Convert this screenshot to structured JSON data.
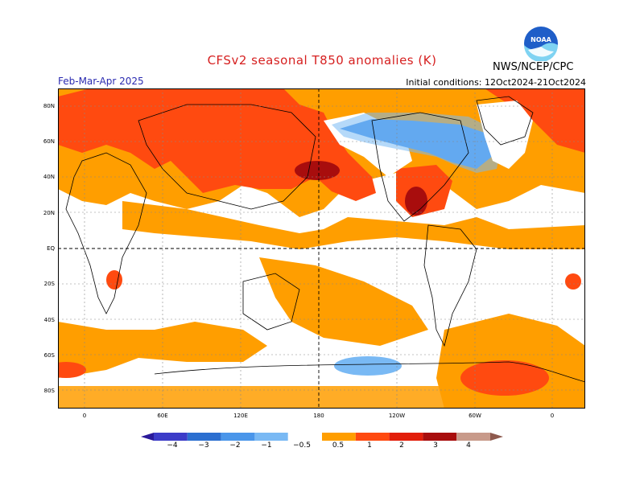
{
  "title": "CFSv2 seasonal T850 anomalies (K)",
  "season": "Feb-Mar-Apr 2025",
  "initial_conditions": "Initial conditions: 12Oct2024-21Oct2024",
  "agency": "NWS/NCEP/CPC",
  "logo_text": "NOAA",
  "lat_labels": [
    "80N",
    "60N",
    "40N",
    "20N",
    "EQ",
    "20S",
    "40S",
    "60S",
    "80S"
  ],
  "lon_labels": [
    "0",
    "60E",
    "120E",
    "180",
    "120W",
    "60W",
    "0"
  ],
  "colorbar": {
    "labels": [
      "−4",
      "−3",
      "−2",
      "−1",
      "−0.5",
      "0.5",
      "1",
      "2",
      "3",
      "4"
    ],
    "colors": [
      "#2a1a9a",
      "#3c3cc8",
      "#2c6fd0",
      "#4a96ea",
      "#79b9f4",
      "#ffffff",
      "#ff9e00",
      "#ff4a10",
      "#e21e0a",
      "#a80d0d",
      "#c89a8a",
      "#8e5a4e"
    ]
  }
}
